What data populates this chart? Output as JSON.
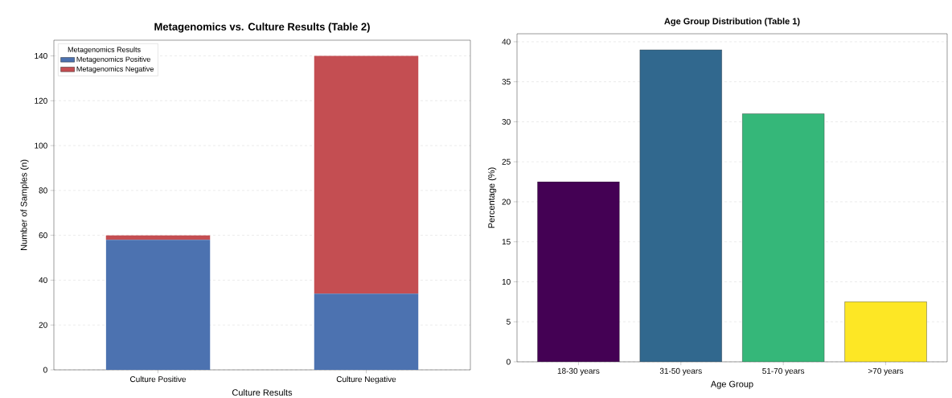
{
  "chart_data": [
    {
      "type": "bar",
      "title": "Metagenomics vs. Culture Results (Table 2)",
      "xlabel": "Culture Results",
      "ylabel": "Number of Samples (n)",
      "legend_title": "Metagenomics Results",
      "categories": [
        "Culture Positive",
        "Culture Negative"
      ],
      "stacked": true,
      "series": [
        {
          "name": "Metagenomics Positive",
          "color": "#4c72b0",
          "values": [
            58,
            34
          ]
        },
        {
          "name": "Metagenomics Negative",
          "color": "#c44e52",
          "values": [
            2,
            106
          ]
        }
      ],
      "ylim": [
        0,
        147
      ],
      "yticks": [
        0,
        20,
        40,
        60,
        80,
        100,
        120,
        140
      ],
      "grid": "y",
      "legend": "top left"
    },
    {
      "type": "bar",
      "title": "Age Group Distribution (Table 1)",
      "xlabel": "Age Group",
      "ylabel": "Percentage (%)",
      "categories": [
        "18-30 years",
        "31-50 years",
        "51-70 years",
        ">70 years"
      ],
      "values": [
        22.5,
        39,
        31,
        7.5
      ],
      "colors": [
        "#440154",
        "#31688e",
        "#35b779",
        "#fde725"
      ],
      "ylim": [
        0,
        41
      ],
      "yticks": [
        0,
        5,
        10,
        15,
        20,
        25,
        30,
        35,
        40
      ],
      "grid": "y"
    }
  ]
}
